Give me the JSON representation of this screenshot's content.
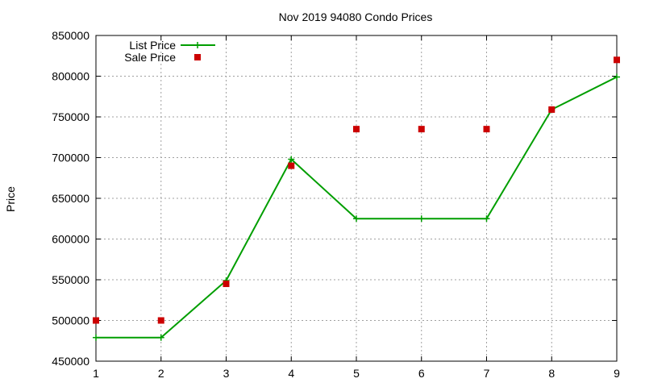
{
  "chart_data": {
    "type": "line",
    "title": "Nov 2019 94080 Condo Prices",
    "xlabel": "",
    "ylabel": "Price",
    "x": [
      1,
      2,
      3,
      4,
      5,
      6,
      7,
      8,
      9
    ],
    "xlim": [
      1,
      9
    ],
    "ylim": [
      450000,
      850000
    ],
    "x_ticks": [
      "1",
      "2",
      "3",
      "4",
      "5",
      "6",
      "7",
      "8",
      "9"
    ],
    "y_ticks": [
      "450000",
      "500000",
      "550000",
      "600000",
      "650000",
      "700000",
      "750000",
      "800000",
      "850000"
    ],
    "grid": true,
    "legend_position": "top-left",
    "series": [
      {
        "name": "List Price",
        "style": "line+plus-markers",
        "color": "#009e00",
        "values": [
          479000,
          479000,
          549000,
          698000,
          625000,
          625000,
          625000,
          759000,
          799000
        ]
      },
      {
        "name": "Sale Price",
        "style": "square-markers",
        "color": "#cc0000",
        "values": [
          500000,
          500000,
          545000,
          690000,
          735000,
          735000,
          735000,
          759000,
          820000
        ]
      }
    ]
  }
}
